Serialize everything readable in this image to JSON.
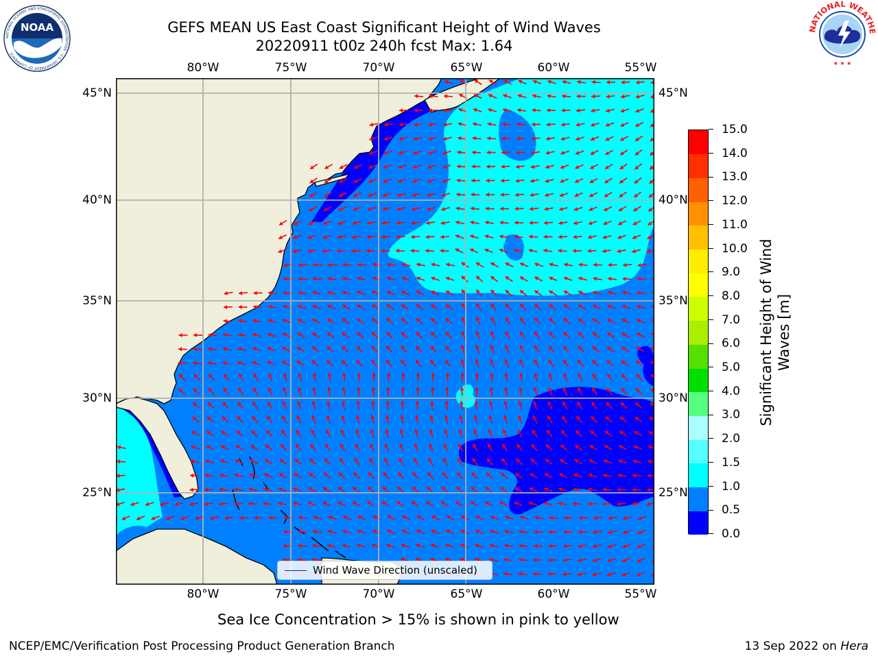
{
  "header": {
    "title_line1": "GEFS MEAN US East Coast Significant Height of Wind Waves",
    "title_line2": "20220911 t00z 240h fcst   Max: 1.64"
  },
  "logos": {
    "left": {
      "name": "NOAA",
      "ring_text": "NATIONAL OCEANIC AND ATMOSPHERIC ADMINISTRATION · U.S. DEPARTMENT OF COMMERCE"
    },
    "right": {
      "name": "National Weather Service",
      "ring_text": "NATIONAL WEATHER SERVICE"
    }
  },
  "map": {
    "lon_labels": [
      "80°W",
      "75°W",
      "70°W",
      "65°W",
      "60°W",
      "55°W"
    ],
    "lat_labels": [
      "45°N",
      "40°N",
      "35°N",
      "30°N",
      "25°N"
    ],
    "colors": {
      "land": "#efefdc",
      "coastline": "#000000",
      "gridline": "#b0b0b0",
      "arrow": "#ff0000"
    },
    "legend": {
      "label": "Wind Wave Direction (unscaled)",
      "line_color": "#1a2a66"
    }
  },
  "colorbar": {
    "title": "Significant Height of Wind Waves [m]",
    "ticks": [
      "0.0",
      "0.5",
      "1.0",
      "1.5",
      "2.0",
      "3.0",
      "4.0",
      "5.0",
      "6.0",
      "7.0",
      "8.0",
      "9.0",
      "10.0",
      "11.0",
      "12.0",
      "13.0",
      "14.0",
      "15.0"
    ],
    "colors": [
      "#0000ff",
      "#0080ff",
      "#00ffff",
      "#55ffff",
      "#aaffff",
      "#55ff80",
      "#00e000",
      "#55e000",
      "#aaee00",
      "#ccff00",
      "#ffff00",
      "#ffee00",
      "#ffc000",
      "#ff9000",
      "#ff6000",
      "#ff3000",
      "#ff0000"
    ]
  },
  "notes": {
    "sea_ice": "Sea Ice Concentration > 15% is shown in pink to yellow"
  },
  "footer": {
    "left": "NCEP/EMC/Verification Post Processing Product Generation Branch",
    "date": "13 Sep 2022 on",
    "host": "Hera"
  }
}
